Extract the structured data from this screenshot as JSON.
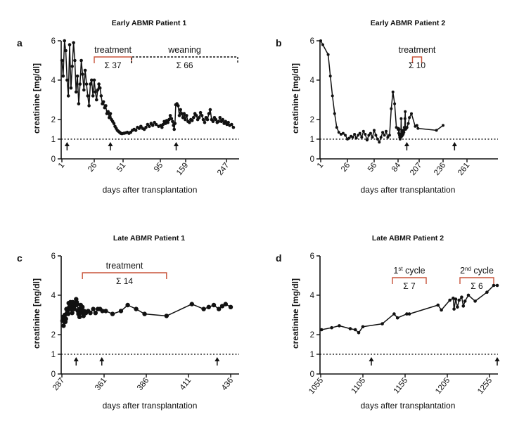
{
  "figure": {
    "panels": [
      {
        "letter": "a",
        "title": "Early ABMR Patient 1",
        "ylabel": "creatinine [mg/dl]",
        "xlabel": "days after transplantation",
        "xticks": [
          "1",
          "26",
          "51",
          "95",
          "159",
          "247"
        ],
        "yticks": [
          "0",
          "1",
          "2",
          "4",
          "6"
        ],
        "brackets": [
          {
            "label": "treatment",
            "sigma": "Σ 37",
            "color": "#c8533a"
          },
          {
            "label": "weaning",
            "sigma": "Σ 66",
            "color": "#111111",
            "dashed": true
          }
        ]
      },
      {
        "letter": "b",
        "title": "Early ABMR Patient 2",
        "ylabel": "creatinine [mg/dl]",
        "xlabel": "days after transplantation",
        "xticks": [
          "1",
          "26",
          "56",
          "84",
          "207",
          "236",
          "261"
        ],
        "yticks": [
          "0",
          "1",
          "2",
          "4",
          "6"
        ],
        "brackets": [
          {
            "label": "treatment",
            "sigma": "Σ 10",
            "color": "#c8533a"
          }
        ]
      },
      {
        "letter": "c",
        "title": "Late ABMR Patient 1",
        "ylabel": "creatinine [mg/dl]",
        "xlabel": "days after transplantation",
        "xticks": [
          "287",
          "361",
          "386",
          "411",
          "436"
        ],
        "yticks": [
          "0",
          "1",
          "2",
          "4",
          "6"
        ],
        "brackets": [
          {
            "label": "treatment",
            "sigma": "Σ 14",
            "color": "#c8533a"
          }
        ]
      },
      {
        "letter": "d",
        "title": "Late ABMR Patient 2",
        "ylabel": "creatinine [mg/dl]",
        "xlabel": "days after transplantation",
        "xticks": [
          "1055",
          "1105",
          "1155",
          "1205",
          "1255"
        ],
        "yticks": [
          "0",
          "1",
          "2",
          "4",
          "6"
        ],
        "brackets": [
          {
            "label": "1",
            "sup": "st",
            "suffix": " cycle",
            "sigma": "Σ 7",
            "color": "#c8533a"
          },
          {
            "label": "2",
            "sup": "nd",
            "suffix": " cycle",
            "sigma": "Σ 6",
            "color": "#c8533a"
          }
        ]
      }
    ]
  },
  "chart_data": [
    {
      "type": "line",
      "title": "Early ABMR Patient 1",
      "xlabel": "days after transplantation",
      "ylabel": "creatinine [mg/dl]",
      "xlim": [
        0,
        300
      ],
      "ylim": [
        0,
        6
      ],
      "reference_line_y": 1,
      "arrows_at_x": [
        5,
        40,
        135
      ],
      "brackets": [
        {
          "label": "treatment",
          "sigma": "Σ 37",
          "x_start": 26,
          "x_end": 61
        },
        {
          "label": "weaning",
          "sigma": "Σ 66",
          "x_start": 61,
          "x_end": 300
        }
      ],
      "points": [
        [
          1,
          5.0
        ],
        [
          2,
          4.2
        ],
        [
          3,
          6.0
        ],
        [
          4,
          5.5
        ],
        [
          5,
          4.0
        ],
        [
          6,
          3.2
        ],
        [
          7,
          5.8
        ],
        [
          8,
          3.6
        ],
        [
          9,
          4.7
        ],
        [
          10,
          5.9
        ],
        [
          11,
          5.0
        ],
        [
          12,
          3.4
        ],
        [
          13,
          4.2
        ],
        [
          14,
          2.8
        ],
        [
          15,
          3.8
        ],
        [
          16,
          5.0
        ],
        [
          17,
          4.3
        ],
        [
          18,
          3.5
        ],
        [
          19,
          4.5
        ],
        [
          20,
          3.8
        ],
        [
          21,
          3.2
        ],
        [
          22,
          2.7
        ],
        [
          23,
          3.8
        ],
        [
          24,
          4.0
        ],
        [
          25,
          3.2
        ],
        [
          26,
          4.0
        ],
        [
          27,
          3.4
        ],
        [
          28,
          3.0
        ],
        [
          29,
          3.5
        ],
        [
          30,
          3.8
        ],
        [
          31,
          3.6
        ],
        [
          32,
          3.2
        ],
        [
          33,
          2.8
        ],
        [
          34,
          2.9
        ],
        [
          35,
          2.6
        ],
        [
          36,
          2.7
        ],
        [
          37,
          2.3
        ],
        [
          38,
          2.4
        ],
        [
          39,
          2.1
        ],
        [
          40,
          2.3
        ],
        [
          41,
          2.0
        ],
        [
          42,
          1.9
        ],
        [
          43,
          1.8
        ],
        [
          44,
          1.65
        ],
        [
          45,
          1.55
        ],
        [
          46,
          1.45
        ],
        [
          47,
          1.4
        ],
        [
          48,
          1.35
        ],
        [
          49,
          1.3
        ],
        [
          50,
          1.28
        ],
        [
          52,
          1.3
        ],
        [
          54,
          1.32
        ],
        [
          56,
          1.35
        ],
        [
          58,
          1.3
        ],
        [
          60,
          1.35
        ],
        [
          62,
          1.45
        ],
        [
          64,
          1.5
        ],
        [
          66,
          1.45
        ],
        [
          68,
          1.6
        ],
        [
          70,
          1.55
        ],
        [
          72,
          1.65
        ],
        [
          74,
          1.55
        ],
        [
          76,
          1.5
        ],
        [
          78,
          1.6
        ],
        [
          80,
          1.75
        ],
        [
          82,
          1.65
        ],
        [
          84,
          1.8
        ],
        [
          86,
          1.7
        ],
        [
          88,
          1.85
        ],
        [
          90,
          1.75
        ],
        [
          93,
          1.65
        ],
        [
          96,
          1.7
        ],
        [
          99,
          1.6
        ],
        [
          102,
          1.75
        ],
        [
          105,
          1.9
        ],
        [
          108,
          1.8
        ],
        [
          111,
          1.95
        ],
        [
          114,
          1.85
        ],
        [
          117,
          2.0
        ],
        [
          120,
          2.2
        ],
        [
          123,
          2.05
        ],
        [
          126,
          1.9
        ],
        [
          128,
          1.7
        ],
        [
          130,
          1.5
        ],
        [
          132,
          1.8
        ],
        [
          134,
          2.75
        ],
        [
          137,
          2.8
        ],
        [
          140,
          2.7
        ],
        [
          143,
          2.2
        ],
        [
          146,
          2.5
        ],
        [
          149,
          2.3
        ],
        [
          152,
          2.1
        ],
        [
          155,
          2.3
        ],
        [
          158,
          2.0
        ],
        [
          161,
          2.2
        ],
        [
          164,
          1.9
        ],
        [
          167,
          1.85
        ],
        [
          170,
          2.0
        ],
        [
          173,
          1.95
        ],
        [
          176,
          2.1
        ],
        [
          179,
          2.3
        ],
        [
          182,
          2.2
        ],
        [
          185,
          2.0
        ],
        [
          188,
          2.1
        ],
        [
          191,
          2.35
        ],
        [
          194,
          2.2
        ],
        [
          197,
          2.0
        ],
        [
          200,
          1.85
        ],
        [
          203,
          2.1
        ],
        [
          206,
          2.0
        ],
        [
          209,
          2.3
        ],
        [
          212,
          2.5
        ],
        [
          215,
          2.0
        ],
        [
          218,
          1.9
        ],
        [
          221,
          2.1
        ],
        [
          224,
          2.0
        ],
        [
          227,
          1.85
        ],
        [
          230,
          1.9
        ],
        [
          233,
          2.1
        ],
        [
          236,
          1.9
        ],
        [
          239,
          2.0
        ],
        [
          242,
          1.8
        ],
        [
          245,
          1.9
        ],
        [
          248,
          1.75
        ],
        [
          251,
          1.85
        ],
        [
          254,
          1.7
        ],
        [
          258,
          1.75
        ],
        [
          262,
          1.6
        ]
      ]
    },
    {
      "type": "line",
      "title": "Early ABMR Patient 2",
      "xlabel": "days after transplantation",
      "ylabel": "creatinine [mg/dl]",
      "xlim": [
        0,
        300
      ],
      "ylim": [
        0,
        6
      ],
      "reference_line_y": 1,
      "arrows_at_x": [
        135,
        248
      ],
      "brackets": [
        {
          "label": "treatment",
          "sigma": "Σ 10",
          "x_start": 168,
          "x_end": 210
        }
      ],
      "points": [
        [
          1,
          6.0
        ],
        [
          3,
          5.8
        ],
        [
          8,
          5.3
        ],
        [
          10,
          4.2
        ],
        [
          12,
          3.2
        ],
        [
          14,
          2.3
        ],
        [
          16,
          1.6
        ],
        [
          18,
          1.35
        ],
        [
          20,
          1.25
        ],
        [
          22,
          1.3
        ],
        [
          24,
          1.2
        ],
        [
          26,
          1.0
        ],
        [
          28,
          1.05
        ],
        [
          30,
          1.15
        ],
        [
          32,
          1.1
        ],
        [
          34,
          1.25
        ],
        [
          36,
          1.05
        ],
        [
          38,
          1.2
        ],
        [
          40,
          1.3
        ],
        [
          42,
          1.1
        ],
        [
          44,
          1.4
        ],
        [
          46,
          1.25
        ],
        [
          48,
          0.95
        ],
        [
          50,
          1.2
        ],
        [
          52,
          1.3
        ],
        [
          54,
          1.1
        ],
        [
          56,
          1.45
        ],
        [
          58,
          1.2
        ],
        [
          60,
          1.0
        ],
        [
          62,
          0.85
        ],
        [
          64,
          1.1
        ],
        [
          66,
          1.35
        ],
        [
          68,
          1.2
        ],
        [
          70,
          1.4
        ],
        [
          72,
          1.1
        ],
        [
          74,
          1.2
        ],
        [
          76,
          2.55
        ],
        [
          78,
          3.4
        ],
        [
          80,
          2.8
        ],
        [
          82,
          1.6
        ],
        [
          84,
          1.5
        ],
        [
          86,
          1.55
        ],
        [
          88,
          1.3
        ],
        [
          90,
          1.5
        ],
        [
          92,
          1.2
        ],
        [
          94,
          1.1
        ],
        [
          96,
          1.0
        ],
        [
          98,
          1.25
        ],
        [
          100,
          1.1
        ],
        [
          102,
          2.05
        ],
        [
          104,
          1.2
        ],
        [
          106,
          1.15
        ],
        [
          108,
          1.35
        ],
        [
          110,
          1.2
        ],
        [
          112,
          1.45
        ],
        [
          114,
          1.25
        ],
        [
          116,
          1.4
        ],
        [
          118,
          1.35
        ],
        [
          120,
          1.6
        ],
        [
          122,
          1.5
        ],
        [
          124,
          2.05
        ],
        [
          126,
          2.4
        ],
        [
          128,
          1.5
        ],
        [
          132,
          1.55
        ],
        [
          136,
          1.6
        ],
        [
          144,
          1.8
        ],
        [
          150,
          2.1
        ],
        [
          162,
          2.3
        ],
        [
          184,
          1.65
        ],
        [
          194,
          1.7
        ],
        [
          200,
          1.55
        ],
        [
          228,
          1.45
        ],
        [
          236,
          1.7
        ]
      ]
    },
    {
      "type": "line",
      "title": "Late ABMR Patient 1",
      "xlabel": "days after transplantation",
      "ylabel": "creatinine [mg/dl]",
      "xlim": [
        287,
        440
      ],
      "ylim": [
        0,
        6
      ],
      "reference_line_y": 1,
      "arrows_at_x": [
        312,
        357,
        428
      ],
      "brackets": [
        {
          "label": "treatment",
          "sigma": "Σ 14",
          "x_start": 323,
          "x_end": 398
        }
      ],
      "points": [
        [
          288,
          2.7
        ],
        [
          289,
          2.9
        ],
        [
          290,
          2.45
        ],
        [
          291,
          2.9
        ],
        [
          292,
          3.0
        ],
        [
          293,
          2.65
        ],
        [
          294,
          2.8
        ],
        [
          295,
          3.3
        ],
        [
          296,
          3.1
        ],
        [
          297,
          3.2
        ],
        [
          298,
          3.05
        ],
        [
          299,
          3.6
        ],
        [
          300,
          3.4
        ],
        [
          301,
          3.45
        ],
        [
          302,
          3.65
        ],
        [
          303,
          3.3
        ],
        [
          304,
          3.55
        ],
        [
          305,
          3.1
        ],
        [
          306,
          3.65
        ],
        [
          307,
          3.5
        ],
        [
          308,
          3.4
        ],
        [
          309,
          3.3
        ],
        [
          310,
          3.6
        ],
        [
          311,
          3.5
        ],
        [
          312,
          3.8
        ],
        [
          313,
          3.65
        ],
        [
          314,
          3.55
        ],
        [
          315,
          3.2
        ],
        [
          316,
          3.05
        ],
        [
          317,
          3.3
        ],
        [
          318,
          2.9
        ],
        [
          319,
          3.1
        ],
        [
          320,
          3.5
        ],
        [
          321,
          3.3
        ],
        [
          322,
          3.2
        ],
        [
          323,
          3.4
        ],
        [
          324,
          3.1
        ],
        [
          325,
          2.95
        ],
        [
          326,
          3.2
        ],
        [
          329,
          3.1
        ],
        [
          333,
          3.2
        ],
        [
          337,
          3.1
        ],
        [
          342,
          3.3
        ],
        [
          346,
          3.1
        ],
        [
          350,
          3.3
        ],
        [
          354,
          3.3
        ],
        [
          358,
          3.2
        ],
        [
          362,
          3.2
        ],
        [
          366,
          3.05
        ],
        [
          371,
          3.2
        ],
        [
          375,
          3.5
        ],
        [
          380,
          3.3
        ],
        [
          385,
          3.05
        ],
        [
          398,
          2.95
        ],
        [
          413,
          3.55
        ],
        [
          420,
          3.3
        ],
        [
          423,
          3.4
        ],
        [
          426,
          3.5
        ],
        [
          429,
          3.3
        ],
        [
          431,
          3.45
        ],
        [
          433,
          3.55
        ],
        [
          436,
          3.4
        ]
      ]
    },
    {
      "type": "line",
      "title": "Late ABMR Patient 2",
      "xlabel": "days after transplantation",
      "ylabel": "creatinine [mg/dl]",
      "xlim": [
        1055,
        1280
      ],
      "ylim": [
        0,
        6
      ],
      "reference_line_y": 1,
      "arrows_at_x": [
        1115,
        1265
      ],
      "brackets": [
        {
          "label": "1st cycle",
          "sigma": "Σ 7",
          "x_start": 1140,
          "x_end": 1180
        },
        {
          "label": "2nd cycle",
          "sigma": "Σ 6",
          "x_start": 1220,
          "x_end": 1260
        }
      ],
      "points": [
        [
          1056,
          2.25
        ],
        [
          1068,
          2.35
        ],
        [
          1077,
          2.45
        ],
        [
          1090,
          2.3
        ],
        [
          1096,
          2.25
        ],
        [
          1100,
          2.1
        ],
        [
          1105,
          2.4
        ],
        [
          1128,
          2.55
        ],
        [
          1142,
          3.05
        ],
        [
          1146,
          2.85
        ],
        [
          1157,
          3.05
        ],
        [
          1160,
          3.05
        ],
        [
          1194,
          3.5
        ],
        [
          1198,
          3.25
        ],
        [
          1208,
          3.75
        ],
        [
          1212,
          3.85
        ],
        [
          1213,
          3.3
        ],
        [
          1215,
          3.8
        ],
        [
          1217,
          3.4
        ],
        [
          1219,
          3.75
        ],
        [
          1222,
          3.9
        ],
        [
          1224,
          3.45
        ],
        [
          1226,
          3.7
        ],
        [
          1230,
          4.0
        ],
        [
          1238,
          3.7
        ],
        [
          1252,
          4.15
        ],
        [
          1260,
          4.5
        ],
        [
          1270,
          4.5
        ]
      ]
    }
  ]
}
